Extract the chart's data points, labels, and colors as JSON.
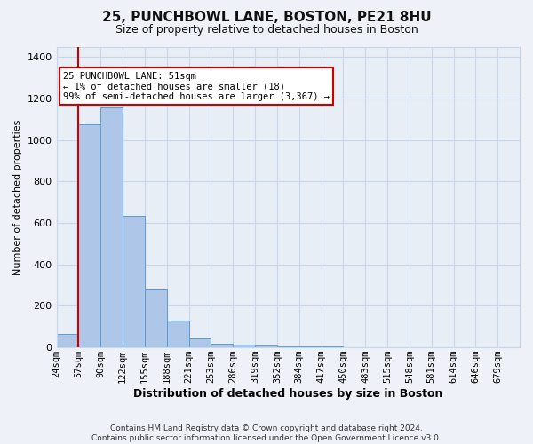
{
  "title1": "25, PUNCHBOWL LANE, BOSTON, PE21 8HU",
  "title2": "Size of property relative to detached houses in Boston",
  "xlabel": "Distribution of detached houses by size in Boston",
  "ylabel": "Number of detached properties",
  "footer": "Contains HM Land Registry data © Crown copyright and database right 2024.\nContains public sector information licensed under the Open Government Licence v3.0.",
  "annotation_line1": "25 PUNCHBOWL LANE: 51sqm",
  "annotation_line2": "← 1% of detached houses are smaller (18)",
  "annotation_line3": "99% of semi-detached houses are larger (3,367) →",
  "bar_color": "#aec6e8",
  "bar_edge_color": "#5b9bd5",
  "grid_color": "#c8d8ea",
  "annotation_box_color": "#ffffff",
  "annotation_box_edge_color": "#cc0000",
  "vline_color": "#cc0000",
  "vline_x_index": 1,
  "categories": [
    "24sqm",
    "57sqm",
    "90sqm",
    "122sqm",
    "155sqm",
    "188sqm",
    "221sqm",
    "253sqm",
    "286sqm",
    "319sqm",
    "352sqm",
    "384sqm",
    "417sqm",
    "450sqm",
    "483sqm",
    "515sqm",
    "548sqm",
    "581sqm",
    "614sqm",
    "646sqm",
    "679sqm"
  ],
  "values": [
    65,
    1075,
    1155,
    635,
    280,
    130,
    45,
    18,
    15,
    8,
    5,
    5,
    3,
    2,
    2,
    2,
    1,
    1,
    1,
    1,
    1
  ],
  "ylim": [
    0,
    1450
  ],
  "yticks": [
    0,
    200,
    400,
    600,
    800,
    1000,
    1200,
    1400
  ],
  "bg_color": "#eef2f8",
  "plot_bg_color": "#e8eef6",
  "title1_fontsize": 11,
  "title2_fontsize": 9,
  "ylabel_fontsize": 8,
  "xlabel_fontsize": 9,
  "tick_fontsize": 7.5,
  "footer_fontsize": 6.5
}
